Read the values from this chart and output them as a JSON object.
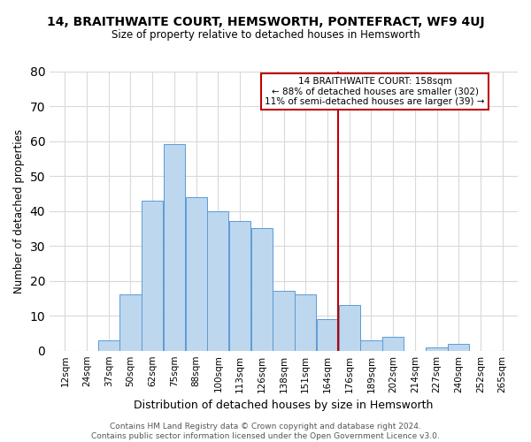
{
  "title": "14, BRAITHWAITE COURT, HEMSWORTH, PONTEFRACT, WF9 4UJ",
  "subtitle": "Size of property relative to detached houses in Hemsworth",
  "xlabel": "Distribution of detached houses by size in Hemsworth",
  "ylabel": "Number of detached properties",
  "bar_labels": [
    "12sqm",
    "24sqm",
    "37sqm",
    "50sqm",
    "62sqm",
    "75sqm",
    "88sqm",
    "100sqm",
    "113sqm",
    "126sqm",
    "138sqm",
    "151sqm",
    "164sqm",
    "176sqm",
    "189sqm",
    "202sqm",
    "214sqm",
    "227sqm",
    "240sqm",
    "252sqm",
    "265sqm"
  ],
  "bar_values": [
    0,
    0,
    3,
    16,
    43,
    59,
    44,
    40,
    37,
    35,
    17,
    16,
    9,
    13,
    3,
    4,
    0,
    1,
    2,
    0,
    0
  ],
  "bar_color": "#bdd7ee",
  "bar_edge_color": "#5b9bd5",
  "vline_x_index": 12.5,
  "vline_color": "#c00000",
  "annotation_text": "14 BRAITHWAITE COURT: 158sqm\n← 88% of detached houses are smaller (302)\n11% of semi-detached houses are larger (39) →",
  "annotation_box_color": "#ffffff",
  "annotation_border_color": "#c00000",
  "ylim": [
    0,
    80
  ],
  "yticks": [
    0,
    10,
    20,
    30,
    40,
    50,
    60,
    70,
    80
  ],
  "footer": "Contains HM Land Registry data © Crown copyright and database right 2024.\nContains public sector information licensed under the Open Government Licence v3.0.",
  "bg_color": "#ffffff",
  "grid_color": "#d9d9d9",
  "title_fontsize": 10,
  "subtitle_fontsize": 8.5,
  "ylabel_fontsize": 8.5,
  "xlabel_fontsize": 9,
  "tick_fontsize": 7.5,
  "annotation_fontsize": 7.5,
  "footer_fontsize": 6.5
}
